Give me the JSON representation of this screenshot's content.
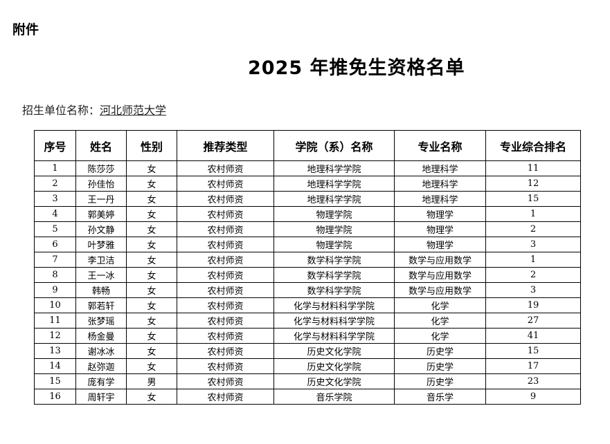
{
  "attachment": "附件",
  "title": "2025 年推免生资格名单",
  "unit_label": "招生单位名称：",
  "unit_value": "河北师范大学",
  "headers": [
    "序号",
    "姓名",
    "性别",
    "推荐类型",
    "学院（系）名称",
    "专业名称",
    "专业综合排名"
  ],
  "rows": [
    [
      "1",
      "陈莎莎",
      "女",
      "农村师资",
      "地理科学学院",
      "地理科学",
      "11"
    ],
    [
      "2",
      "孙佳怡",
      "女",
      "农村师资",
      "地理科学学院",
      "地理科学",
      "12"
    ],
    [
      "3",
      "王一丹",
      "女",
      "农村师资",
      "地理科学学院",
      "地理科学",
      "15"
    ],
    [
      "4",
      "郭美婷",
      "女",
      "农村师资",
      "物理学院",
      "物理学",
      "1"
    ],
    [
      "5",
      "孙文静",
      "女",
      "农村师资",
      "物理学院",
      "物理学",
      "2"
    ],
    [
      "6",
      "叶梦雅",
      "女",
      "农村师资",
      "物理学院",
      "物理学",
      "3"
    ],
    [
      "7",
      "李卫洁",
      "女",
      "农村师资",
      "数学科学学院",
      "数学与应用数学",
      "1"
    ],
    [
      "8",
      "王一冰",
      "女",
      "农村师资",
      "数学科学学院",
      "数学与应用数学",
      "2"
    ],
    [
      "9",
      "韩畅",
      "女",
      "农村师资",
      "数学科学学院",
      "数学与应用数学",
      "3"
    ],
    [
      "10",
      "郭若轩",
      "女",
      "农村师资",
      "化学与材料科学学院",
      "化学",
      "19"
    ],
    [
      "11",
      "张梦瑶",
      "女",
      "农村师资",
      "化学与材料科学学院",
      "化学",
      "27"
    ],
    [
      "12",
      "杨金曼",
      "女",
      "农村师资",
      "化学与材料科学学院",
      "化学",
      "41"
    ],
    [
      "13",
      "谢冰冰",
      "女",
      "农村师资",
      "历史文化学院",
      "历史学",
      "15"
    ],
    [
      "14",
      "赵弥迦",
      "女",
      "农村师资",
      "历史文化学院",
      "历史学",
      "17"
    ],
    [
      "15",
      "庞有学",
      "男",
      "农村师资",
      "历史文化学院",
      "历史学",
      "23"
    ],
    [
      "16",
      "周轩宇",
      "女",
      "农村师资",
      "音乐学院",
      "音乐学",
      "9"
    ]
  ]
}
